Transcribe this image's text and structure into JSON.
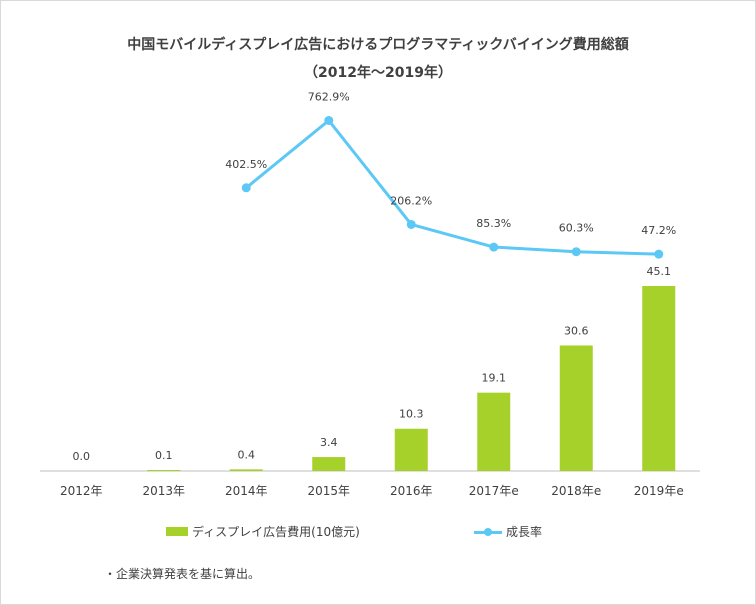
{
  "title_line1": "中国モバイルディスプレイ広告におけるプログラマティックバイイング費用総額",
  "title_line2": "（2012年～2019年）",
  "note": "・企業決算発表を基に算出。",
  "colors": {
    "bar": "#a6d12b",
    "line": "#5bc8f5",
    "text": "#404040",
    "axis": "#bfbfbf"
  },
  "chart_data": {
    "type": "bar+line",
    "categories": [
      "2012年",
      "2013年",
      "2014年",
      "2015年",
      "2016年",
      "2017年e",
      "2018年e",
      "2019年e"
    ],
    "series": [
      {
        "name": "ディスプレイ広告費用(10億元)",
        "type": "bar",
        "values": [
          0.0,
          0.1,
          0.4,
          3.4,
          10.3,
          19.1,
          30.6,
          45.1
        ],
        "labels": [
          "0.0",
          "0.1",
          "0.4",
          "3.4",
          "10.3",
          "19.1",
          "30.6",
          "45.1"
        ]
      },
      {
        "name": "成長率",
        "type": "line",
        "values": [
          null,
          null,
          402.5,
          762.9,
          206.2,
          85.3,
          60.3,
          47.2
        ],
        "labels": [
          "",
          "",
          "402.5%",
          "762.9%",
          "206.2%",
          "85.3%",
          "60.3%",
          "47.2%"
        ]
      }
    ],
    "legend_position": "bottom",
    "grid": false
  }
}
